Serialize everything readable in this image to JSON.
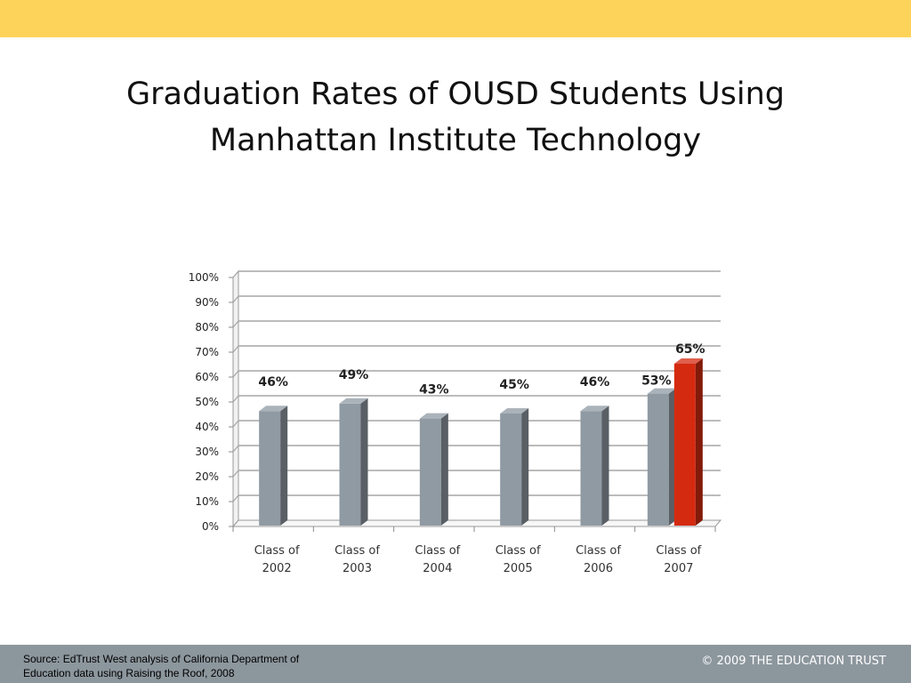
{
  "slide": {
    "title_line1": "Graduation Rates of OUSD Students Using",
    "title_line2": "Manhattan Institute Technology"
  },
  "footer": {
    "source_line1": "Source:  EdTrust West analysis of California Department of",
    "source_line2": "Education data using Raising the Roof, 2008",
    "copyright": "© 2009 THE EDUCATION TRUST"
  },
  "colors": {
    "top_band": "#fdd459",
    "bar_gray": "#8f9aa3",
    "bar_highlight": "#d42a10",
    "footer": "#8c969d"
  },
  "chart_data": {
    "type": "bar",
    "categories": [
      [
        "Class of",
        "2002"
      ],
      [
        "Class of",
        "2003"
      ],
      [
        "Class of",
        "2004"
      ],
      [
        "Class of",
        "2005"
      ],
      [
        "Class of",
        "2006"
      ],
      [
        "Class of",
        "2007"
      ]
    ],
    "series": [
      {
        "values": [
          46,
          49,
          43,
          45,
          46,
          53
        ],
        "labels": [
          "46%",
          "49%",
          "43%",
          "45%",
          "46%",
          "53%"
        ],
        "color": "#8f9aa3"
      },
      {
        "values": [
          null,
          null,
          null,
          null,
          null,
          65
        ],
        "labels": [
          "",
          "",
          "",
          "",
          "",
          "65%"
        ],
        "color": "#d42a10"
      }
    ],
    "yticks": [
      "0%",
      "10%",
      "20%",
      "30%",
      "40%",
      "50%",
      "60%",
      "70%",
      "80%",
      "90%",
      "100%"
    ],
    "ylim": [
      0,
      100
    ],
    "grid": true,
    "style": "3d-column"
  }
}
